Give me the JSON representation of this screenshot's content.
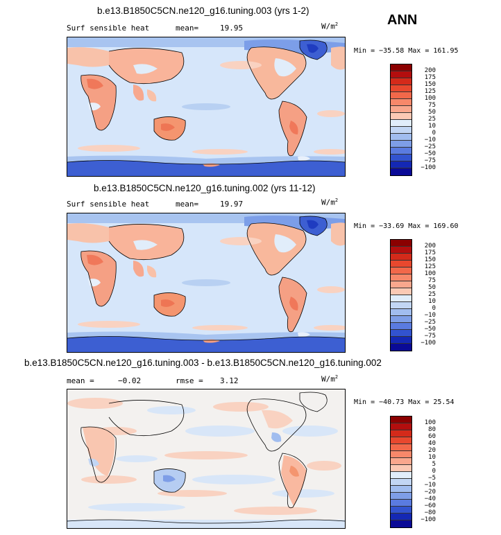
{
  "season": "ANN",
  "panels": [
    {
      "title": "b.e13.B1850C5CN.ne120_g16.tuning.003 (yrs 1-2)",
      "variable": "Surf sensible heat",
      "stat_label": "mean=",
      "stat_value": "19.95",
      "units": "W/m",
      "units_exp": "2",
      "min_max": "Min = −35.58 Max = 161.95",
      "levels": [
        "200",
        "175",
        "150",
        "125",
        "100",
        "75",
        "50",
        "25",
        "10",
        "0",
        "−10",
        "−25",
        "−50",
        "−75",
        "−100"
      ]
    },
    {
      "title": "b.e13.B1850C5CN.ne120_g16.tuning.002 (yrs 11-12)",
      "variable": "Surf sensible heat",
      "stat_label": "mean=",
      "stat_value": "19.97",
      "units": "W/m",
      "units_exp": "2",
      "min_max": "Min = −33.69 Max = 169.60",
      "levels": [
        "200",
        "175",
        "150",
        "125",
        "100",
        "75",
        "50",
        "25",
        "10",
        "0",
        "−10",
        "−25",
        "−50",
        "−75",
        "−100"
      ]
    },
    {
      "title": "b.e13.B1850C5CN.ne120_g16.tuning.003 - b.e13.B1850C5CN.ne120_g16.tuning.002",
      "stat_label": "mean =",
      "stat_value": "−0.02",
      "rmse_label": "rmse =",
      "rmse_value": "3.12",
      "units": "W/m",
      "units_exp": "2",
      "min_max": "Min = −40.73 Max =  25.54",
      "levels": [
        "100",
        "80",
        "60",
        "40",
        "20",
        "10",
        "5",
        "0",
        "−5",
        "−10",
        "−20",
        "−40",
        "−60",
        "−80",
        "−100"
      ]
    }
  ],
  "colors": {
    "scale": [
      "#8b0000",
      "#b30e0e",
      "#d42a1a",
      "#e8482e",
      "#f2684a",
      "#f7886a",
      "#f9a78d",
      "#fbc9b4",
      "#e1edfa",
      "#c2d6f4",
      "#a1bdef",
      "#7e9ee7",
      "#5a7be0",
      "#3253cf",
      "#1428b4",
      "#0a0a96"
    ]
  }
}
